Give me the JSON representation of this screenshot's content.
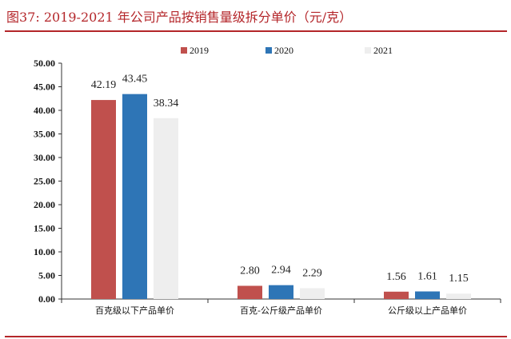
{
  "figure": {
    "title": "图37:    2019-2021 年公司产品按销售量级拆分单价（元/克）"
  },
  "chart_data": {
    "type": "bar",
    "categories": [
      "百克级以下产品单价",
      "百克-公斤级产品单价",
      "公斤级以上产品单价"
    ],
    "series": [
      {
        "name": "2019",
        "color": "#c0504d",
        "values": [
          42.19,
          2.8,
          1.56
        ],
        "labels": [
          "42.19",
          "2.80",
          "1.56"
        ]
      },
      {
        "name": "2020",
        "color": "#2e75b6",
        "values": [
          43.45,
          2.94,
          1.61
        ],
        "labels": [
          "43.45",
          "2.94",
          "1.61"
        ]
      },
      {
        "name": "2021",
        "color": "#eeeeee",
        "values": [
          38.34,
          2.29,
          1.15
        ],
        "labels": [
          "38.34",
          "2.29",
          "1.15"
        ]
      }
    ],
    "yticks": [
      "0.00",
      "5.00",
      "10.00",
      "15.00",
      "20.00",
      "25.00",
      "30.00",
      "35.00",
      "40.00",
      "45.00",
      "50.00"
    ],
    "ylim": [
      0,
      50
    ],
    "legend_position": "top",
    "grid": false
  }
}
